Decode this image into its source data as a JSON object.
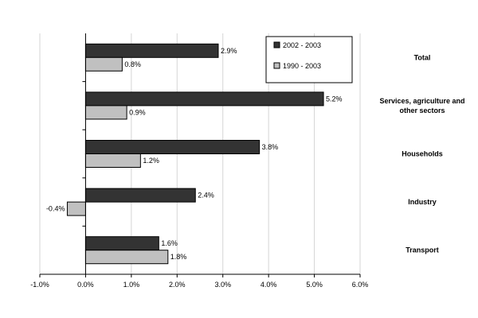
{
  "chart_data": {
    "type": "bar",
    "orientation": "horizontal",
    "categories": [
      "Total",
      "Services, agriculture and other sectors",
      "Households",
      "Industry",
      "Transport"
    ],
    "category_lines": [
      [
        "Total"
      ],
      [
        "Services, agriculture and",
        "other sectors"
      ],
      [
        "Households"
      ],
      [
        "Industry"
      ],
      [
        "Transport"
      ]
    ],
    "series": [
      {
        "name": "2002 - 2003",
        "values": [
          2.9,
          5.2,
          3.8,
          2.4,
          1.6
        ],
        "labels": [
          "2.9%",
          "5.2%",
          "3.8%",
          "2.4%",
          "1.6%"
        ],
        "color": "#333333"
      },
      {
        "name": "1990 - 2003",
        "values": [
          0.8,
          0.9,
          1.2,
          -0.4,
          1.8
        ],
        "labels": [
          "0.8%",
          "0.9%",
          "1.2%",
          "-0.4%",
          "1.8%"
        ],
        "color": "#c0c0c0"
      }
    ],
    "xlim": [
      -1.0,
      6.0
    ],
    "x_ticks": [
      -1.0,
      0.0,
      1.0,
      2.0,
      3.0,
      4.0,
      5.0,
      6.0
    ],
    "x_tick_labels": [
      "-1.0%",
      "0.0%",
      "1.0%",
      "2.0%",
      "3.0%",
      "4.0%",
      "5.0%",
      "6.0%"
    ],
    "grid": "vertical",
    "legend_position": "top-right",
    "title": "",
    "xlabel": "",
    "ylabel": ""
  }
}
